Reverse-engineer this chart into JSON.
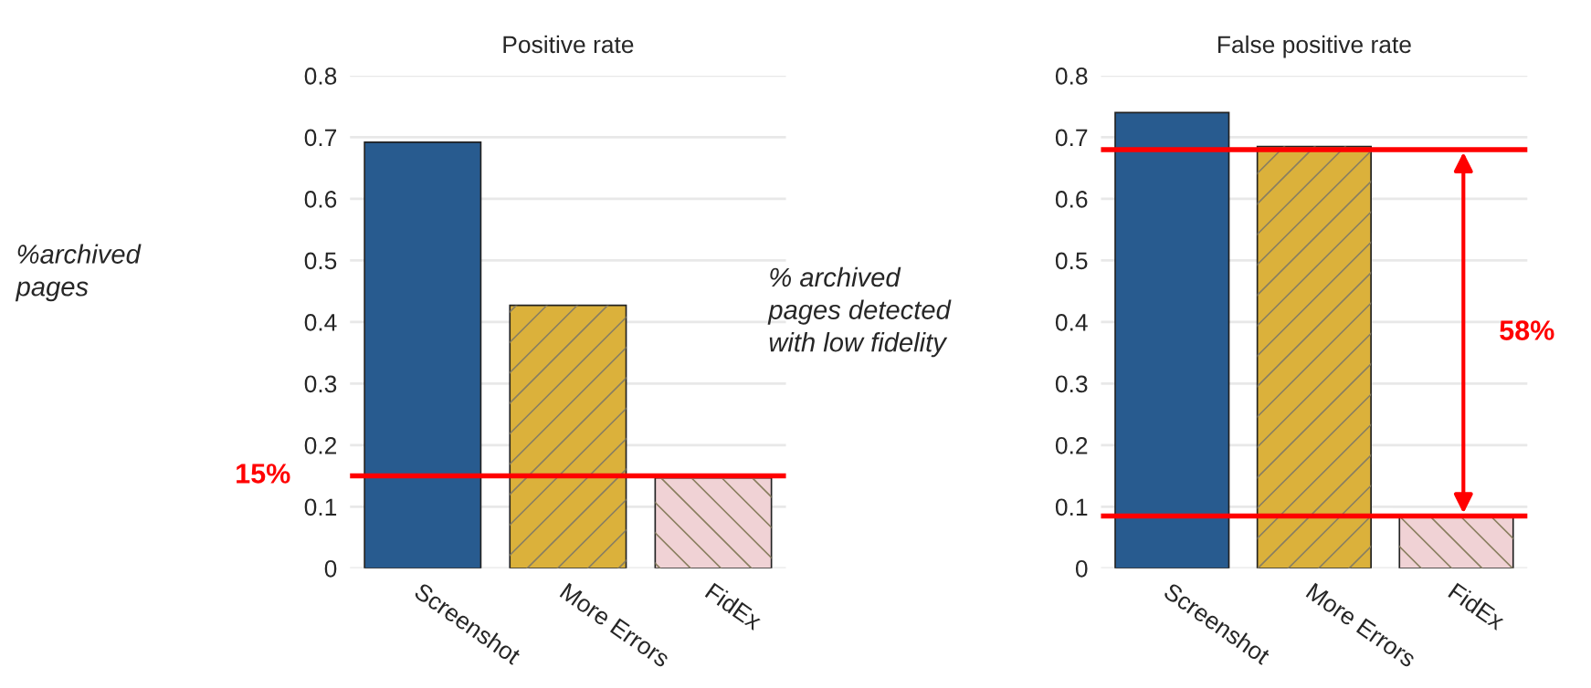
{
  "chart_data": [
    {
      "type": "bar",
      "title": "Positive rate",
      "ylabel": "%archived\npages",
      "categories": [
        "Screenshot",
        "More Errors",
        "FidEx"
      ],
      "values": [
        0.692,
        0.427,
        0.147
      ],
      "colors": [
        "#285b8f",
        "#dbb13b",
        "#f0d2d5"
      ],
      "ylim": [
        0,
        0.8
      ],
      "yticks": [
        {
          "value": 0,
          "label": "0"
        },
        0.1,
        0.2,
        0.3,
        0.4,
        0.5,
        0.6,
        0.7,
        0.8
      ],
      "grid": "y",
      "ref_lines": [
        {
          "axis": "y",
          "value": 0.15,
          "label": "15%",
          "color": "#ff0000"
        }
      ]
    },
    {
      "type": "bar",
      "title": "False positive rate",
      "ylabel": "% archived\npages detected\nwith low fidelity",
      "categories": [
        "Screenshot",
        "More Errors",
        "FidEx"
      ],
      "values": [
        0.74,
        0.685,
        0.084
      ],
      "colors": [
        "#285b8f",
        "#dbb13b",
        "#f0d2d5"
      ],
      "ylim": [
        0,
        0.8
      ],
      "yticks": [
        {
          "value": 0,
          "label": "0"
        },
        0.1,
        0.2,
        0.3,
        0.4,
        0.5,
        0.6,
        0.7,
        0.8
      ],
      "grid": "y",
      "ref_lines": [
        {
          "axis": "y",
          "value": 0.68,
          "label": null,
          "color": "#ff0000"
        },
        {
          "axis": "y",
          "value": 0.085,
          "label": null,
          "color": "#ff0000"
        }
      ],
      "annotations": [
        "58%"
      ]
    }
  ]
}
